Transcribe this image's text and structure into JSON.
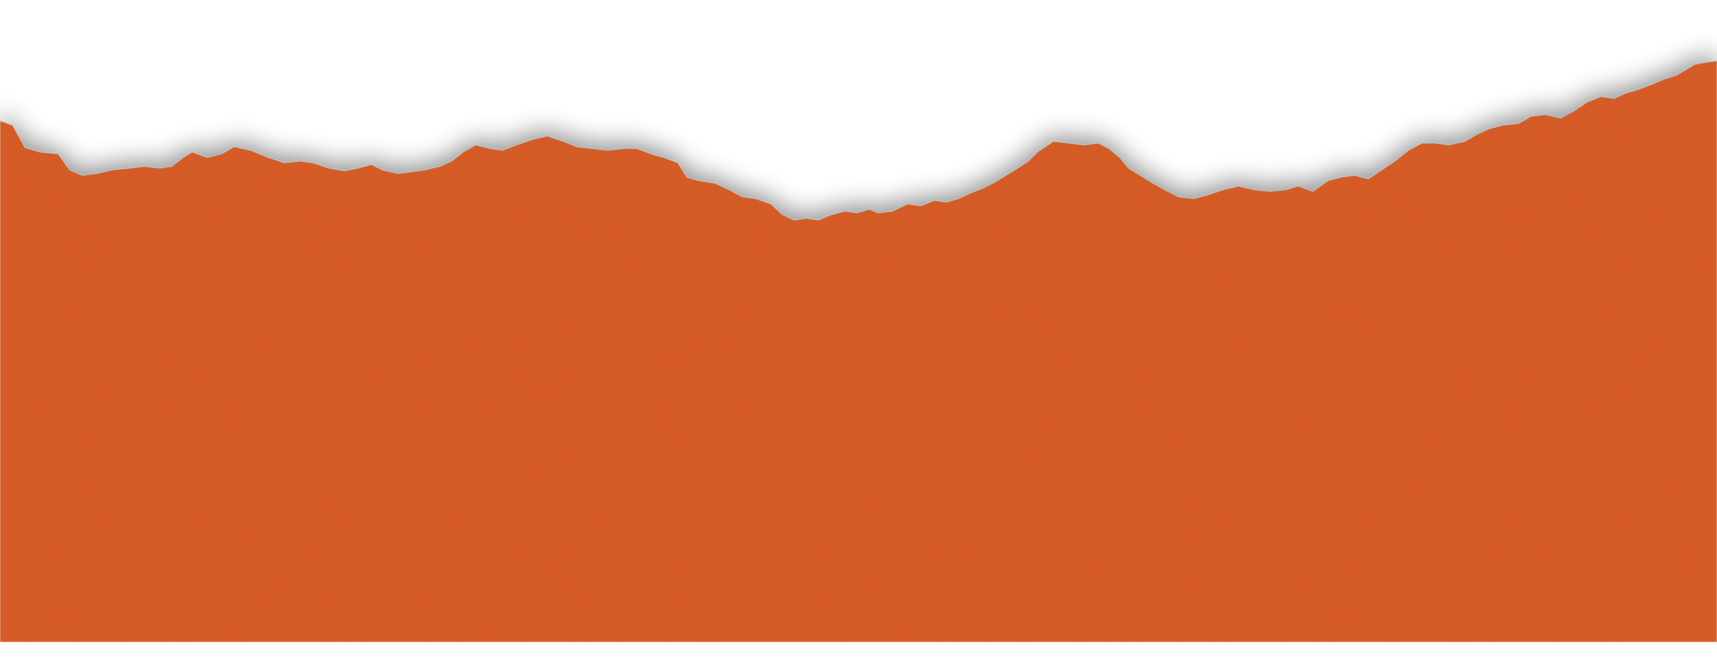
{
  "graphic": {
    "icon": "torn-paper-edge",
    "paper_color": "#d85a25",
    "speckle_color": "#7a2e10",
    "shadow_color": "#000000",
    "background_color": "#ffffff"
  }
}
